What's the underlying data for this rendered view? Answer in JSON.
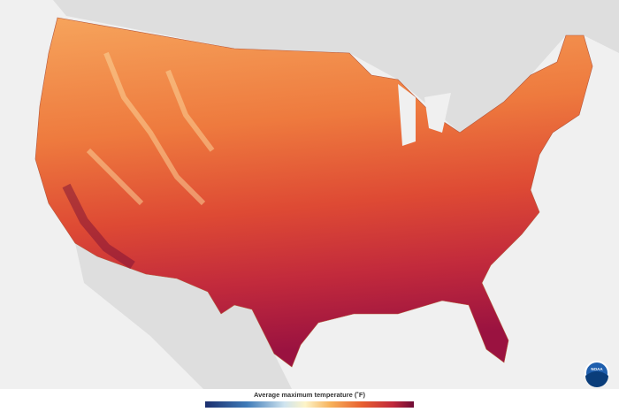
{
  "legend": {
    "title": "Average maximum temperature (˚F)"
  },
  "logo": {
    "text": "NOAA"
  }
}
